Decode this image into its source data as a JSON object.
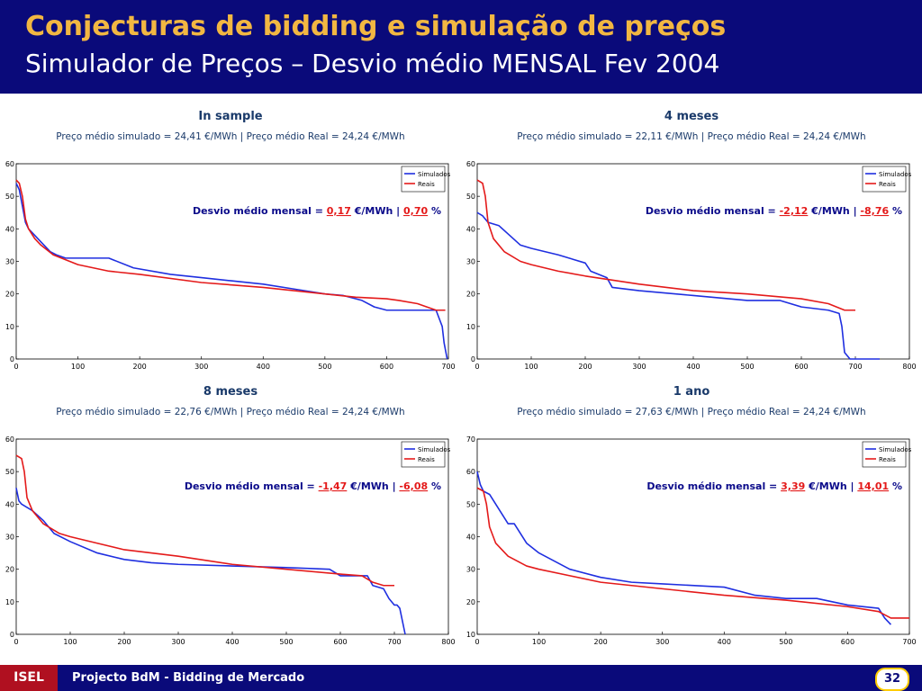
{
  "header": {
    "title": "Conjecturas de bidding e simulação de preços",
    "subtitle": "Simulador de Preços – Desvio médio MENSAL Fev 2004"
  },
  "footer": {
    "org": "ISEL",
    "project": "Projecto BdM - Bidding de Mercado",
    "page": "32"
  },
  "colors": {
    "simulados": "#1f2fe0",
    "reais": "#e41a1a",
    "header_bg": "#0a0a7a",
    "title_accent": "#f2b742",
    "highlight": "#0a0a8a"
  },
  "panels": [
    {
      "title": "In sample",
      "subtitle": "Preço médio simulado = 24,41 €/MWh | Preço médio Real = 24,24 €/MWh",
      "desvio_prefix": "Desvio médio mensal =",
      "desvio_value": "0,17",
      "desvio_unit": "€/MWh |",
      "desvio_pct": "0,70",
      "desvio_pct_unit": "%"
    },
    {
      "title": "4 meses",
      "subtitle": "Preço médio simulado = 22,11 €/MWh | Preço médio Real = 24,24 €/MWh",
      "desvio_prefix": "Desvio médio mensal =",
      "desvio_value": "-2,12",
      "desvio_unit": "€/MWh |",
      "desvio_pct": "-8,76",
      "desvio_pct_unit": "%"
    },
    {
      "title": "8 meses",
      "subtitle": "Preço médio simulado = 22,76 €/MWh | Preço médio Real = 24,24 €/MWh",
      "desvio_prefix": "Desvio médio mensal =",
      "desvio_value": "-1,47",
      "desvio_unit": "€/MWh |",
      "desvio_pct": "-6,08",
      "desvio_pct_unit": "%"
    },
    {
      "title": "1 ano",
      "subtitle": "Preço médio simulado = 27,63 €/MWh | Preço médio Real = 24,24 €/MWh",
      "desvio_prefix": "Desvio médio mensal =",
      "desvio_value": "3,39",
      "desvio_unit": "€/MWh |",
      "desvio_pct": "14,01",
      "desvio_pct_unit": "%"
    }
  ],
  "chart_data": [
    {
      "type": "line",
      "xlim": [
        0,
        700
      ],
      "ylim": [
        0,
        60
      ],
      "xticks": [
        0,
        100,
        200,
        300,
        400,
        500,
        600,
        700
      ],
      "yticks": [
        0,
        10,
        20,
        30,
        40,
        50,
        60
      ],
      "grid": false,
      "legend": "top-right",
      "series": [
        {
          "name": "Simulados",
          "color": "#1f2fe0",
          "x": [
            0,
            5,
            10,
            15,
            20,
            25,
            35,
            45,
            55,
            65,
            80,
            100,
            150,
            190,
            250,
            300,
            350,
            400,
            450,
            500,
            530,
            560,
            580,
            600,
            640,
            680,
            690,
            693,
            696,
            698
          ],
          "y": [
            54,
            52,
            47,
            42,
            40,
            39,
            37,
            35,
            33,
            32,
            31,
            31,
            31,
            28,
            26,
            25,
            24,
            23,
            21.5,
            20,
            19.5,
            18,
            16,
            15,
            15,
            15,
            10,
            5,
            2,
            0
          ]
        },
        {
          "name": "Reais",
          "color": "#e41a1a",
          "x": [
            0,
            5,
            10,
            15,
            20,
            30,
            40,
            60,
            100,
            150,
            200,
            300,
            400,
            500,
            550,
            600,
            620,
            650,
            680,
            695
          ],
          "y": [
            55,
            54,
            50,
            43,
            40,
            37,
            35,
            32,
            29,
            27,
            26,
            23.5,
            22,
            20,
            19,
            18.5,
            18,
            17,
            15,
            15
          ]
        }
      ]
    },
    {
      "type": "line",
      "xlim": [
        0,
        800
      ],
      "ylim": [
        0,
        60
      ],
      "xticks": [
        0,
        100,
        200,
        300,
        400,
        500,
        600,
        700,
        800
      ],
      "yticks": [
        0,
        10,
        20,
        30,
        40,
        50,
        60
      ],
      "grid": false,
      "legend": "top-right",
      "series": [
        {
          "name": "Simulados",
          "color": "#1f2fe0",
          "x": [
            0,
            10,
            20,
            40,
            60,
            80,
            100,
            150,
            200,
            210,
            240,
            250,
            300,
            400,
            500,
            560,
            600,
            650,
            670,
            675,
            680,
            690,
            700,
            745
          ],
          "y": [
            45,
            44,
            42,
            41,
            38,
            35,
            34,
            32,
            29.5,
            27,
            25,
            22,
            21,
            19.5,
            18,
            18,
            16,
            15,
            14,
            10,
            2,
            0,
            0,
            0
          ]
        },
        {
          "name": "Reais",
          "color": "#e41a1a",
          "x": [
            0,
            10,
            15,
            20,
            30,
            50,
            80,
            100,
            150,
            200,
            300,
            400,
            500,
            600,
            650,
            680,
            700
          ],
          "y": [
            55,
            54,
            50,
            42,
            37,
            33,
            30,
            29,
            27,
            25.5,
            23,
            21,
            20,
            18.5,
            17,
            15,
            15
          ]
        }
      ]
    },
    {
      "type": "line",
      "xlim": [
        0,
        800
      ],
      "ylim": [
        0,
        60
      ],
      "xticks": [
        0,
        100,
        200,
        300,
        400,
        500,
        600,
        700,
        800
      ],
      "yticks": [
        0,
        10,
        20,
        30,
        40,
        50,
        60
      ],
      "grid": false,
      "legend": "top-right",
      "series": [
        {
          "name": "Simulados",
          "color": "#1f2fe0",
          "x": [
            0,
            5,
            10,
            30,
            50,
            70,
            100,
            150,
            200,
            250,
            300,
            400,
            500,
            580,
            600,
            650,
            660,
            680,
            690,
            700,
            705,
            710,
            720
          ],
          "y": [
            45,
            41,
            40,
            38,
            35,
            31,
            28.5,
            25,
            23,
            22,
            21.5,
            21,
            20.5,
            20,
            18,
            18,
            15,
            14,
            11,
            9,
            9,
            8,
            0
          ]
        },
        {
          "name": "Reais",
          "color": "#e41a1a",
          "x": [
            0,
            10,
            15,
            20,
            30,
            50,
            80,
            100,
            150,
            200,
            300,
            400,
            500,
            600,
            640,
            660,
            680,
            690,
            700
          ],
          "y": [
            55,
            54,
            50,
            42,
            38,
            34,
            31,
            30,
            28,
            26,
            24,
            21.5,
            20,
            18.5,
            18,
            16,
            15,
            15,
            15
          ]
        }
      ]
    },
    {
      "type": "line",
      "xlim": [
        0,
        700
      ],
      "ylim": [
        10,
        70
      ],
      "xticks": [
        0,
        100,
        200,
        300,
        400,
        500,
        600,
        700
      ],
      "yticks": [
        10,
        20,
        30,
        40,
        50,
        60,
        70
      ],
      "grid": false,
      "legend": "top-right",
      "series": [
        {
          "name": "Simulados",
          "color": "#1f2fe0",
          "x": [
            0,
            5,
            10,
            20,
            40,
            50,
            60,
            80,
            100,
            150,
            200,
            250,
            300,
            400,
            450,
            500,
            550,
            600,
            650,
            660,
            670
          ],
          "y": [
            60,
            56,
            54,
            53,
            47,
            44,
            44,
            38,
            35,
            30,
            27.5,
            26,
            25.5,
            24.5,
            22,
            21,
            21,
            19,
            18,
            15,
            13
          ]
        },
        {
          "name": "Reais",
          "color": "#e41a1a",
          "x": [
            0,
            10,
            15,
            20,
            30,
            50,
            80,
            100,
            150,
            200,
            300,
            400,
            500,
            600,
            650,
            670,
            690,
            700
          ],
          "y": [
            55,
            54,
            50,
            43,
            38,
            34,
            31,
            30,
            28,
            26,
            24,
            22,
            20.5,
            18.5,
            17,
            15,
            15,
            15
          ]
        }
      ]
    }
  ]
}
